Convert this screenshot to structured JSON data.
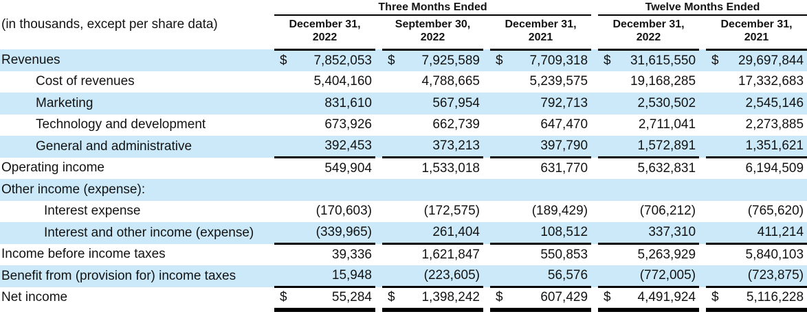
{
  "units_note": "(in thousands, except per share data)",
  "dollar_sign": "$",
  "colors": {
    "stripe": "#cbe9f8",
    "text": "#131313",
    "rule": "#000000"
  },
  "table": {
    "groups": [
      {
        "label": "Three Months Ended",
        "columns": 3
      },
      {
        "label": "Twelve Months Ended",
        "columns": 2
      }
    ],
    "columns": [
      {
        "line1": "December 31,",
        "line2": "2022"
      },
      {
        "line1": "September 30,",
        "line2": "2022"
      },
      {
        "line1": "December 31,",
        "line2": "2021"
      },
      {
        "line1": "December 31,",
        "line2": "2022"
      },
      {
        "line1": "December 31,",
        "line2": "2021"
      }
    ],
    "rows": [
      {
        "label": "Revenues",
        "indent": 0,
        "dollar": true,
        "shaded": true,
        "underline": "none",
        "values": [
          "7,852,053",
          "7,925,589",
          "7,709,318",
          "31,615,550",
          "29,697,844"
        ]
      },
      {
        "label": "Cost of revenues",
        "indent": 1,
        "dollar": false,
        "shaded": false,
        "underline": "none",
        "values": [
          "5,404,160",
          "4,788,665",
          "5,239,575",
          "19,168,285",
          "17,332,683"
        ]
      },
      {
        "label": "Marketing",
        "indent": 1,
        "dollar": false,
        "shaded": true,
        "underline": "none",
        "values": [
          "831,610",
          "567,954",
          "792,713",
          "2,530,502",
          "2,545,146"
        ]
      },
      {
        "label": "Technology and development",
        "indent": 1,
        "dollar": false,
        "shaded": false,
        "underline": "none",
        "values": [
          "673,926",
          "662,739",
          "647,470",
          "2,711,041",
          "2,273,885"
        ]
      },
      {
        "label": "General and administrative",
        "indent": 1,
        "dollar": false,
        "shaded": true,
        "underline": "single",
        "values": [
          "392,453",
          "373,213",
          "397,790",
          "1,572,891",
          "1,351,621"
        ]
      },
      {
        "label": "Operating income",
        "indent": 0,
        "dollar": false,
        "shaded": false,
        "underline": "none",
        "values": [
          "549,904",
          "1,533,018",
          "631,770",
          "5,632,831",
          "6,194,509"
        ]
      },
      {
        "label": "Other income (expense):",
        "indent": 0,
        "dollar": false,
        "shaded": true,
        "underline": "none",
        "values": [
          "",
          "",
          "",
          "",
          ""
        ]
      },
      {
        "label": "Interest expense",
        "indent": 2,
        "dollar": false,
        "shaded": false,
        "underline": "none",
        "values": [
          "(170,603)",
          "(172,575)",
          "(189,429)",
          "(706,212)",
          "(765,620)"
        ]
      },
      {
        "label": "Interest and other income (expense)",
        "indent": 2,
        "dollar": false,
        "shaded": true,
        "underline": "single",
        "values": [
          "(339,965)",
          "261,404",
          "108,512",
          "337,310",
          "411,214"
        ]
      },
      {
        "label": "Income before income taxes",
        "indent": 0,
        "dollar": false,
        "shaded": false,
        "underline": "none",
        "values": [
          "39,336",
          "1,621,847",
          "550,853",
          "5,263,929",
          "5,840,103"
        ]
      },
      {
        "label": "Benefit from (provision for) income taxes",
        "indent": 0,
        "dollar": false,
        "shaded": true,
        "underline": "single",
        "values": [
          "15,948",
          "(223,605)",
          "56,576",
          "(772,005)",
          "(723,875)"
        ]
      },
      {
        "label": "Net income",
        "indent": 0,
        "dollar": true,
        "shaded": false,
        "underline": "double",
        "values": [
          "55,284",
          "1,398,242",
          "607,429",
          "4,491,924",
          "5,116,228"
        ]
      }
    ]
  }
}
